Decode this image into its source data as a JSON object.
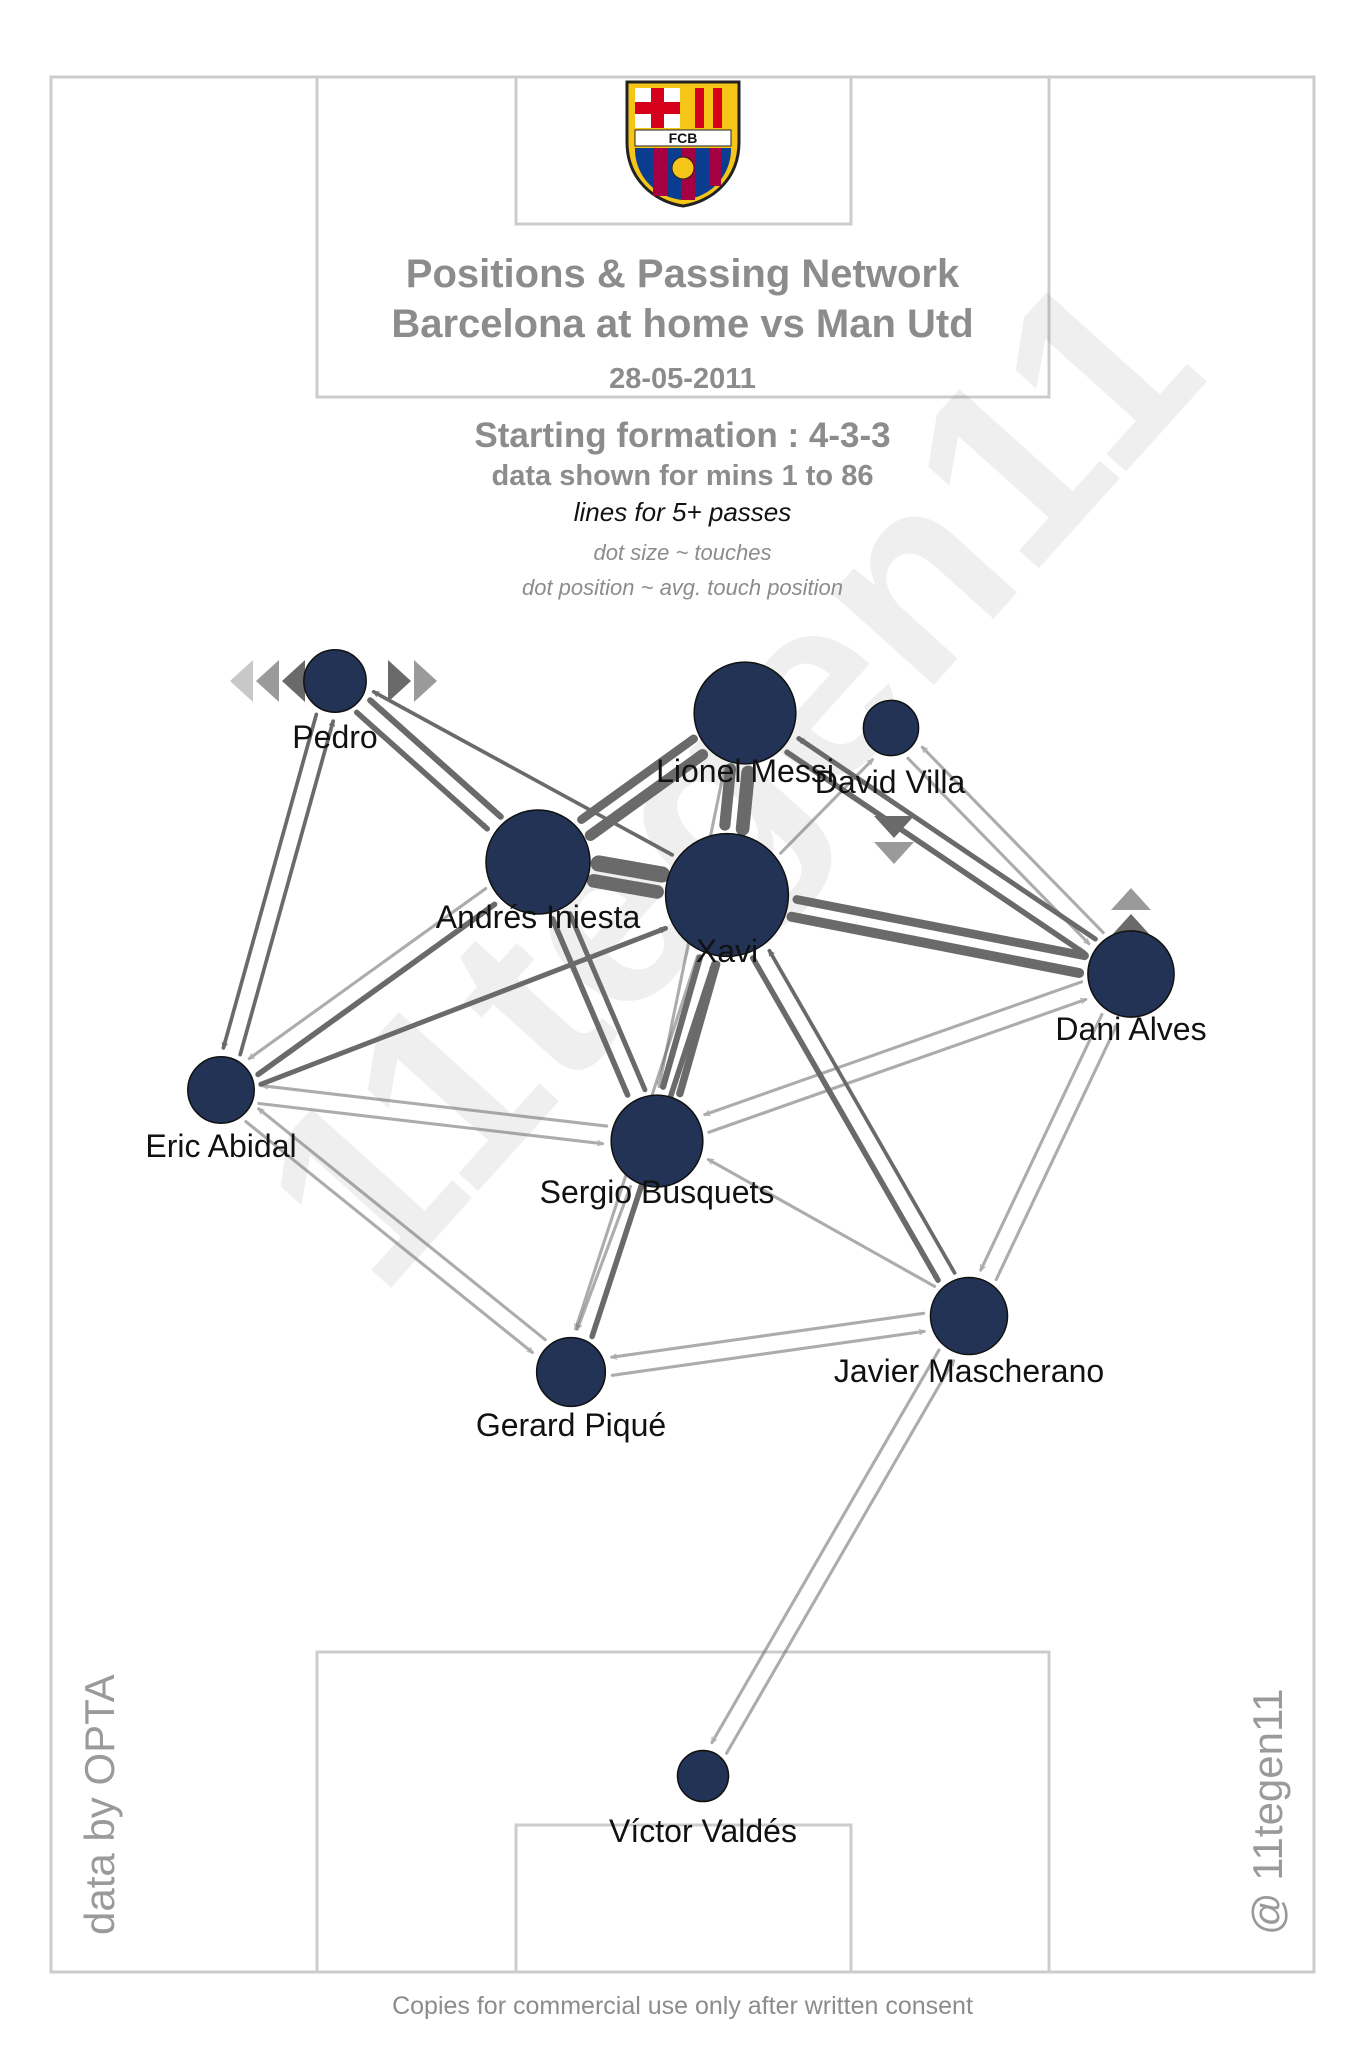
{
  "title": {
    "line1": "Positions & Passing Network",
    "line2": "Barcelona at home vs Man Utd",
    "date": "28-05-2011"
  },
  "subtitle": {
    "formation": "Starting formation : 4-3-3",
    "mins": "data shown for mins 1 to 86",
    "lines_note": "lines for 5+ passes",
    "dot_size_note": "dot size ~ touches",
    "dot_pos_note": "dot position ~ avg. touch position"
  },
  "crest": {
    "text": "FCB",
    "colors": {
      "blue": "#0a3d8f",
      "garnet": "#a50044",
      "gold": "#f5c518",
      "red": "#d6001c"
    }
  },
  "credits": {
    "left": "data by OPTA",
    "right": "@ 11tegen11",
    "footer": "Copies for commercial use only after written consent"
  },
  "colors": {
    "node": "#223355",
    "edge": "#6a6a6a",
    "pitch_line": "#cccccc"
  },
  "players": [
    {
      "id": "pedro",
      "name": "Pedro",
      "touches": 30
    },
    {
      "id": "messi",
      "name": "Lionel Messi",
      "touches": 95
    },
    {
      "id": "villa",
      "name": "David Villa",
      "touches": 22
    },
    {
      "id": "iniesta",
      "name": "Andrés Iniesta",
      "touches": 100
    },
    {
      "id": "xavi",
      "name": "Xavi",
      "touches": 145
    },
    {
      "id": "alves",
      "name": "Dani Alves",
      "touches": 65
    },
    {
      "id": "abidal",
      "name": "Eric Abidal",
      "touches": 35
    },
    {
      "id": "busquets",
      "name": "Sergio Busquets",
      "touches": 75
    },
    {
      "id": "mascherano",
      "name": "Javier Mascherano",
      "touches": 50
    },
    {
      "id": "pique",
      "name": "Gerard Piqué",
      "touches": 38
    },
    {
      "id": "valdes",
      "name": "Víctor Valdés",
      "touches": 18
    }
  ],
  "passes": [
    {
      "from": "xavi",
      "to": "iniesta",
      "count": 26
    },
    {
      "from": "iniesta",
      "to": "xavi",
      "count": 22
    },
    {
      "from": "xavi",
      "to": "messi",
      "count": 22
    },
    {
      "from": "messi",
      "to": "xavi",
      "count": 18
    },
    {
      "from": "iniesta",
      "to": "messi",
      "count": 18
    },
    {
      "from": "messi",
      "to": "iniesta",
      "count": 14
    },
    {
      "from": "xavi",
      "to": "alves",
      "count": 16
    },
    {
      "from": "alves",
      "to": "xavi",
      "count": 14
    },
    {
      "from": "xavi",
      "to": "busquets",
      "count": 10
    },
    {
      "from": "busquets",
      "to": "xavi",
      "count": 12
    },
    {
      "from": "iniesta",
      "to": "busquets",
      "count": 9
    },
    {
      "from": "busquets",
      "to": "iniesta",
      "count": 8
    },
    {
      "from": "pedro",
      "to": "iniesta",
      "count": 9
    },
    {
      "from": "iniesta",
      "to": "pedro",
      "count": 10
    },
    {
      "from": "abidal",
      "to": "iniesta",
      "count": 9
    },
    {
      "from": "abidal",
      "to": "xavi",
      "count": 8
    },
    {
      "from": "pique",
      "to": "xavi",
      "count": 9
    },
    {
      "from": "busquets",
      "to": "pique",
      "count": 5
    },
    {
      "from": "xavi",
      "to": "mascherano",
      "count": 9
    },
    {
      "from": "mascherano",
      "to": "xavi",
      "count": 6
    },
    {
      "from": "messi",
      "to": "alves",
      "count": 9
    },
    {
      "from": "alves",
      "to": "messi",
      "count": 8
    },
    {
      "from": "villa",
      "to": "alves",
      "count": 5
    },
    {
      "from": "alves",
      "to": "villa",
      "count": 5
    },
    {
      "from": "xavi",
      "to": "pedro",
      "count": 6
    },
    {
      "from": "abidal",
      "to": "pedro",
      "count": 6
    },
    {
      "from": "pedro",
      "to": "abidal",
      "count": 6
    },
    {
      "from": "abidal",
      "to": "busquets",
      "count": 5
    },
    {
      "from": "busquets",
      "to": "abidal",
      "count": 5
    },
    {
      "from": "iniesta",
      "to": "abidal",
      "count": 5
    },
    {
      "from": "mascherano",
      "to": "alves",
      "count": 5
    },
    {
      "from": "alves",
      "to": "mascherano",
      "count": 5
    },
    {
      "from": "pique",
      "to": "mascherano",
      "count": 5
    },
    {
      "from": "mascherano",
      "to": "pique",
      "count": 5
    },
    {
      "from": "alves",
      "to": "busquets",
      "count": 5
    },
    {
      "from": "busquets",
      "to": "alves",
      "count": 5
    },
    {
      "from": "abidal",
      "to": "pique",
      "count": 5
    },
    {
      "from": "pique",
      "to": "abidal",
      "count": 5
    },
    {
      "from": "xavi",
      "to": "pique",
      "count": 5
    },
    {
      "from": "mascherano",
      "to": "busquets",
      "count": 5
    },
    {
      "from": "valdes",
      "to": "mascherano",
      "count": 5
    },
    {
      "from": "mascherano",
      "to": "valdes",
      "count": 5
    },
    {
      "from": "messi",
      "to": "busquets",
      "count": 5
    },
    {
      "from": "xavi",
      "to": "villa",
      "count": 5
    }
  ]
}
